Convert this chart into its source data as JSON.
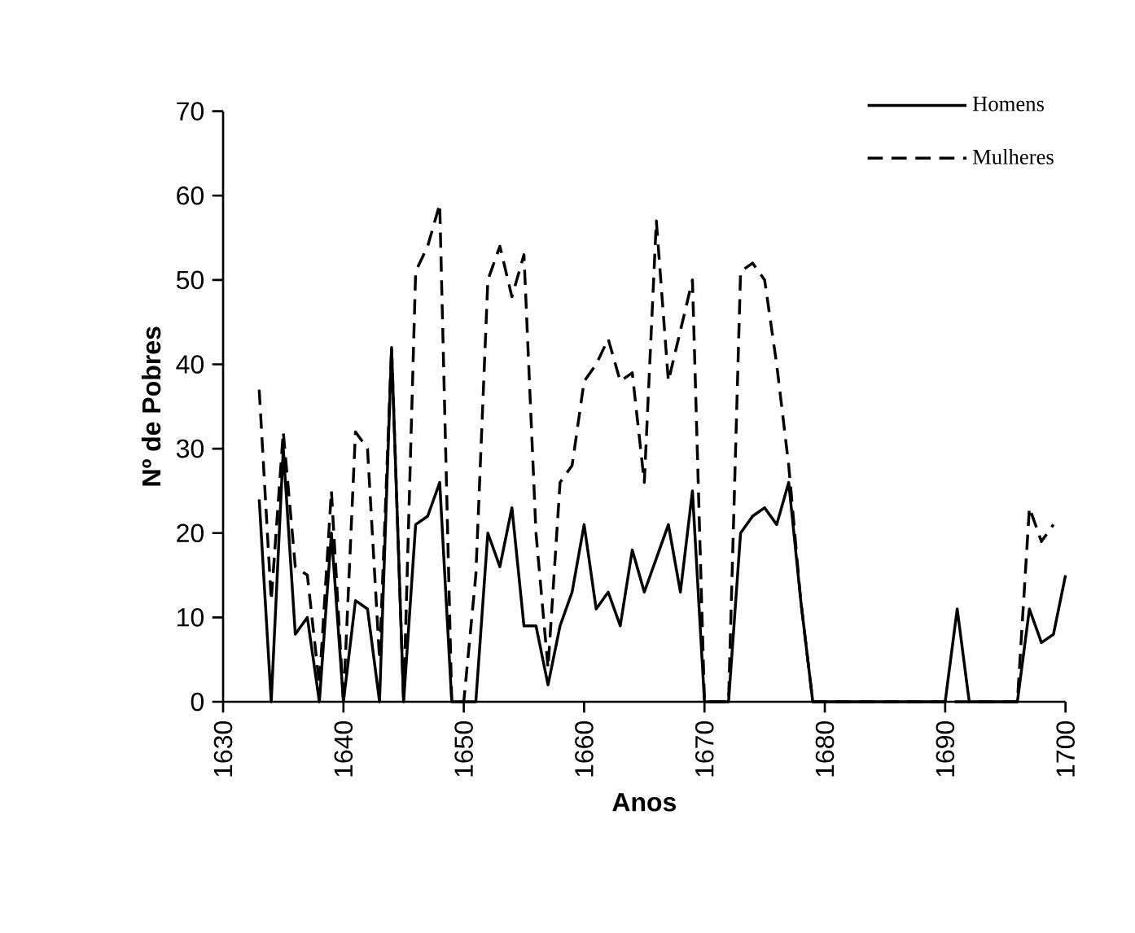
{
  "chart_data": {
    "type": "line",
    "xlabel": "Anos",
    "ylabel": "Nº de Pobres",
    "x": [
      1633,
      1634,
      1635,
      1636,
      1637,
      1638,
      1639,
      1640,
      1641,
      1642,
      1643,
      1644,
      1645,
      1646,
      1647,
      1648,
      1649,
      1650,
      1651,
      1652,
      1653,
      1654,
      1655,
      1656,
      1657,
      1658,
      1659,
      1660,
      1661,
      1662,
      1663,
      1664,
      1665,
      1666,
      1667,
      1668,
      1669,
      1670,
      1671,
      1672,
      1673,
      1674,
      1675,
      1676,
      1677,
      1678,
      1679,
      1680,
      1681,
      1682,
      1683,
      1684,
      1685,
      1686,
      1687,
      1688,
      1689,
      1690,
      1691,
      1692,
      1693,
      1694,
      1695,
      1696,
      1697,
      1698,
      1699,
      1700
    ],
    "series": [
      {
        "name": "Homens",
        "color": "#000000",
        "line_style": "solid",
        "values": [
          24,
          0,
          30,
          8,
          10,
          0,
          20,
          0,
          12,
          11,
          0,
          42,
          0,
          21,
          22,
          26,
          0,
          0,
          0,
          20,
          16,
          23,
          9,
          9,
          2,
          9,
          13,
          21,
          11,
          13,
          9,
          18,
          13,
          17,
          21,
          13,
          25,
          0,
          0,
          0,
          20,
          22,
          23,
          21,
          26,
          12,
          0,
          0,
          0,
          0,
          0,
          0,
          0,
          0,
          0,
          0,
          0,
          0,
          11,
          0,
          0,
          0,
          0,
          0,
          11,
          7,
          8,
          15
        ]
      },
      {
        "name": "Mulheres",
        "color": "#000000",
        "line_style": "dashed",
        "values": [
          37,
          12,
          32,
          16,
          15,
          2,
          25,
          0,
          32,
          30,
          5,
          42,
          0,
          51,
          54,
          59,
          0,
          0,
          15,
          50,
          54,
          48,
          53,
          20,
          4,
          26,
          28,
          38,
          40,
          43,
          38,
          39,
          26,
          57,
          38,
          44,
          50,
          0,
          0,
          0,
          51,
          52,
          50,
          40,
          28,
          12,
          0,
          0,
          0,
          0,
          0,
          0,
          0,
          0,
          0,
          0,
          0,
          0,
          0,
          0,
          0,
          0,
          0,
          0,
          23,
          19,
          21,
          null
        ]
      }
    ],
    "xlim": [
      1630,
      1700
    ],
    "ylim": [
      0,
      70
    ],
    "xticks": [
      1630,
      1640,
      1650,
      1660,
      1670,
      1680,
      1690,
      1700
    ],
    "yticks": [
      0,
      10,
      20,
      30,
      40,
      50,
      60,
      70
    ],
    "legend": "top right",
    "marker": "none"
  }
}
